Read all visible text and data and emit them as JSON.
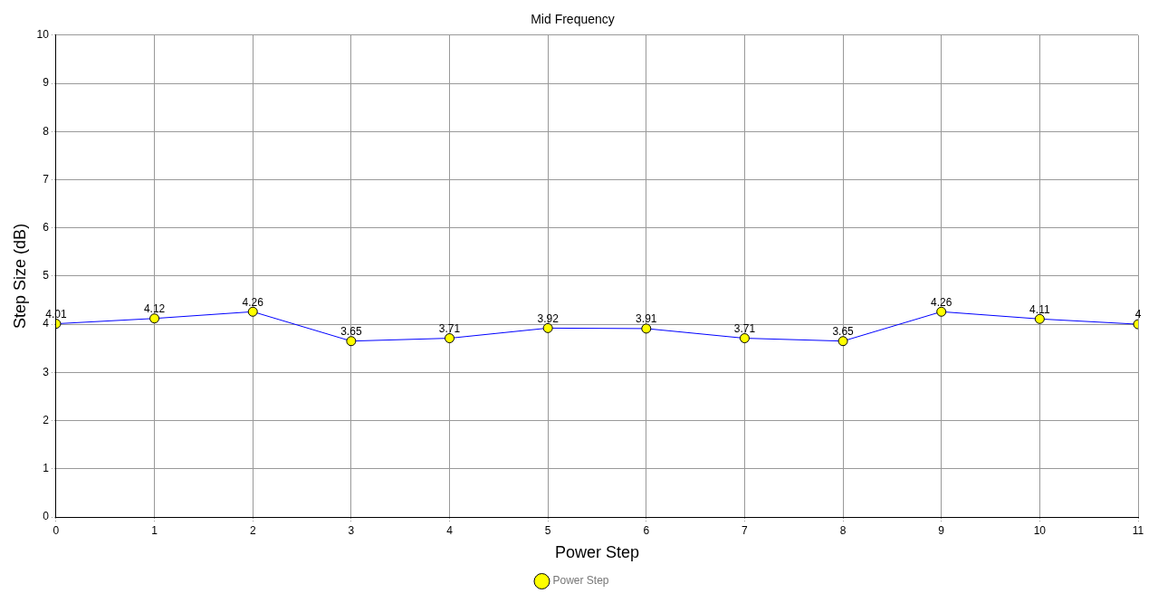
{
  "chart_data": {
    "type": "line",
    "title": "Mid Frequency",
    "xlabel": "Power Step",
    "ylabel": "Step Size (dB)",
    "x": [
      0,
      1,
      2,
      3,
      4,
      5,
      6,
      7,
      8,
      9,
      10,
      11
    ],
    "series": [
      {
        "name": "Power Step",
        "color": "#0000ff",
        "values": [
          4.01,
          4.12,
          4.26,
          3.65,
          3.71,
          3.92,
          3.91,
          3.71,
          3.65,
          4.26,
          4.11,
          4
        ]
      }
    ],
    "xlim": [
      0,
      11
    ],
    "xticks": [
      0,
      1,
      2,
      3,
      4,
      5,
      6,
      7,
      8,
      9,
      10,
      11
    ],
    "ylim": [
      0,
      10
    ],
    "yticks": [
      0,
      1,
      2,
      3,
      4,
      5,
      6,
      7,
      8,
      9,
      10
    ],
    "grid": true,
    "legend": "bottom",
    "marker": "circle",
    "line_style": "solid",
    "data_labels": true
  }
}
